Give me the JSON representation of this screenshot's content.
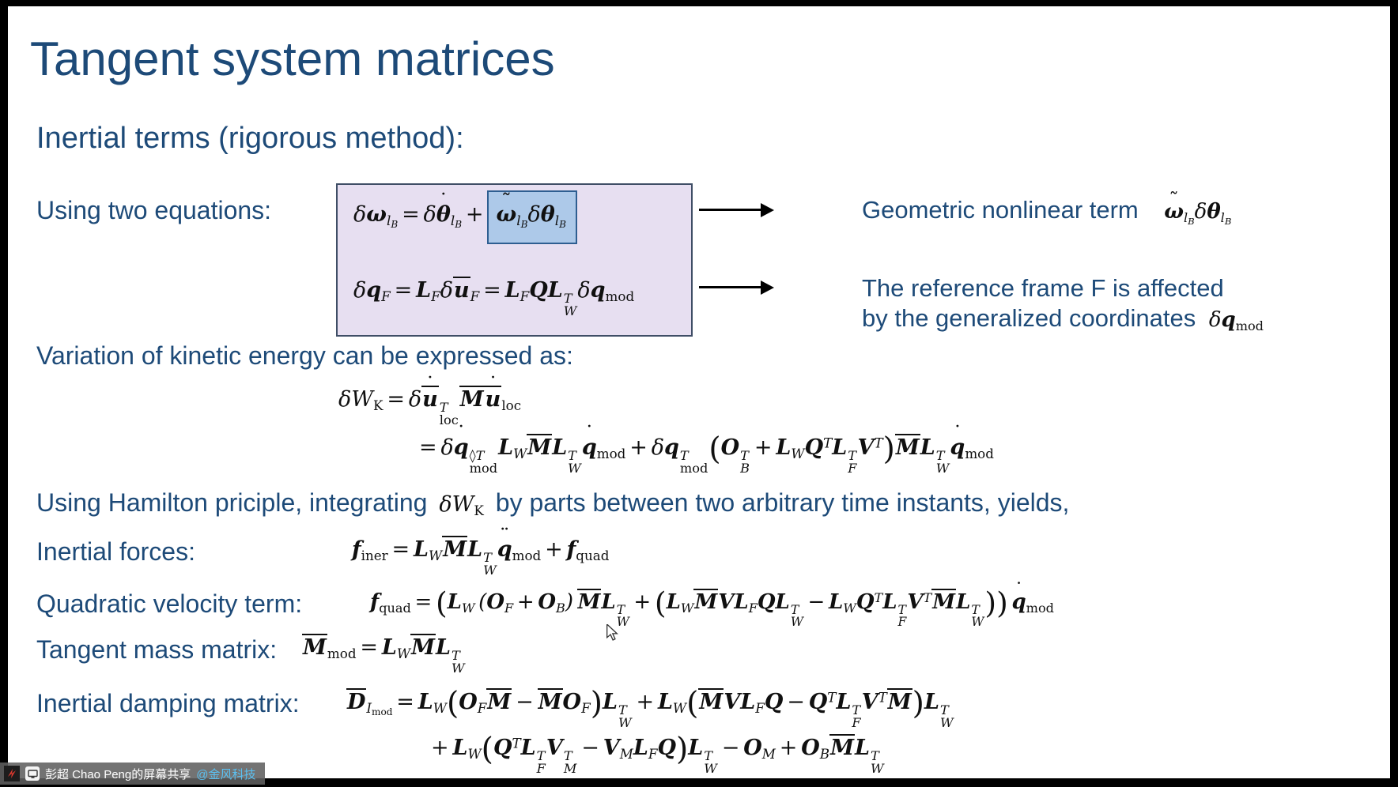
{
  "slide": {
    "title": "Tangent system matrices",
    "subtitle": "Inertial terms (rigorous method):",
    "labels": {
      "using_two_equations": "Using two equations:",
      "variation": "Variation of kinetic energy can be expressed as:",
      "hamilton_prefix": "Using Hamilton priciple, integrating",
      "hamilton_suffix": "by parts between two arbitrary time instants, yields,",
      "inertial_forces": "Inertial forces:",
      "quadratic_velocity": "Quadratic velocity term:",
      "tangent_mass": "Tangent mass matrix:",
      "inertial_damping": "Inertial damping matrix:",
      "geometric_nonlinear": "Geometric nonlinear term",
      "reference_frame_line1": "The reference frame F is affected",
      "reference_frame_line2": "by the generalized coordinates"
    },
    "equations": {
      "omega_variation_pre": "δ!b{ω}_{l_{B}} = δ!d{!b{θ}}_{l_{B}} +",
      "omega_variation_highlight": "!t{!b{ω}}_{l_{B}}δ!b{θ}_{l_{B}}",
      "qF_variation": "δ!b{q}_{F} = !b{L}_{F}δ!o{!b{u}}_{F} = !b{L}_{F}!b{Q}!b{L}!s{T}{W}δ!b{q}_{!r{mod}}",
      "geometric_term": "!t{!b{ω}}_{l_{B}}δ!b{θ}_{l_{B}}",
      "qmod_term": "δ!b{q}_{!r{mod}}",
      "kinetic_line1": "δW_{!r{K}} = δ!d{!o{!b{u}}}!s{T}{!r{loc}}!o{!b{M}}!d{!o{!b{u}}}_{!r{loc}}",
      "kinetic_line2": "= δ!d{!b{q}}!s{◊T}{!r{mod}}!b{L}_{W}!o{!b{M}}!b{L}!s{T}{W}!d{!b{q}}_{!r{mod}} + δ!b{q}!s{T}{!r{mod}}!(!b{O}!s{T}{B} + !b{L}_{W}!b{Q}^{T}!b{L}!s{T}{F}!b{V}^{T}!)!o{!b{M}}!b{L}!s{T}{W}!d{!b{q}}_{!r{mod}}",
      "hamilton_WK": "δW_{!r{K}}",
      "inertial_forces": "!b{f}_{!r{iner}} = !b{L}_{W}!o{!b{M}}!b{L}!s{T}{W}!D{!b{q}}_{!r{mod}} + !b{f}_{!r{quad}}",
      "quadratic_velocity": "!b{f}_{!r{quad}} = !(!b{L}_{W} (!b{O}_{F} + !b{O}_{B}) !o{!b{M}}!b{L}!s{T}{W} + !(!b{L}_{W}!o{!b{M}}!b{V}!b{L}_{F}!b{Q}!b{L}!s{T}{W} − !b{L}_{W}!b{Q}^{T}!b{L}!s{T}{F}!b{V}^{T}!o{!b{M}}!b{L}!s{T}{W}!)!) !d{!b{q}}_{!r{mod}}",
      "tangent_mass": "!o{!b{M}}_{!r{mod}} = !b{L}_{W}!o{!b{M}}!b{L}!s{T}{W}",
      "damping_line1": "!o{!b{D}}_{I_{!r{mod}}} = !b{L}_{W}!(!b{O}_{F}!o{!b{M}} − !o{!b{M}}!b{O}_{F}!)!b{L}!s{T}{W} + !b{L}_{W}!(!o{!b{M}}!b{V}!b{L}_{F}!b{Q} − !b{Q}^{T}!b{L}!s{T}{F}!b{V}^{T}!o{!b{M}}!)!b{L}!s{T}{W}",
      "damping_line2": "+ !b{L}_{W}!(!b{Q}^{T}!b{L}!s{T}{F}!b{V}!s{T}{M} − !b{V}_{M}!b{L}_{F}!b{Q}!)!b{L}!s{T}{W} − !b{O}_{M} + !b{O}_{B}!o{!b{M}}!b{L}!s{T}{W}"
    },
    "colors": {
      "heading": "#1d4a78",
      "box_fill": "#e7dff1",
      "box_border": "#3f4e66",
      "highlight_fill": "#adc9e9",
      "highlight_border": "#2e5e91"
    }
  },
  "share_bar": {
    "presenter": "彭超 Chao Peng的屏幕共享",
    "mention": "@金风科技",
    "mention_color": "#5ac1f2",
    "icons": [
      "app-logo-icon",
      "screen-share-icon"
    ]
  }
}
